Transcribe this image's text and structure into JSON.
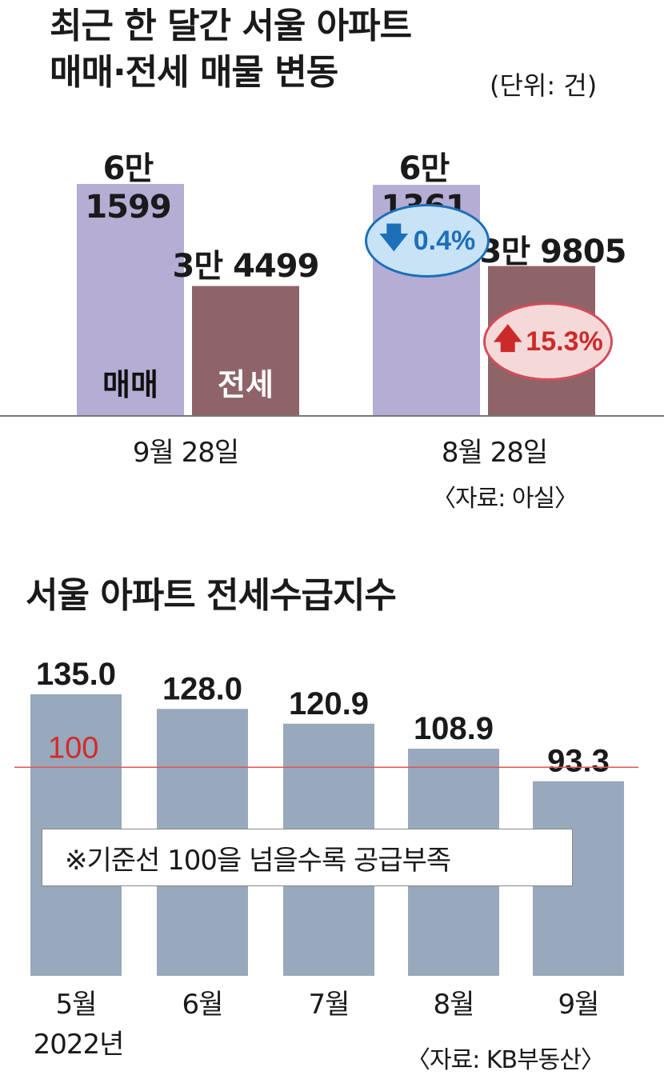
{
  "chart_data": [
    {
      "type": "bar",
      "title": "최근 한 달간 서울 아파트 매매·전세 매물 변동",
      "title_line1": "최근 한 달간 서울 아파트",
      "title_line2": "매매·전세 매물 변동",
      "unit": "(단위: 건)",
      "categories": [
        "9월 28일",
        "8월 28일"
      ],
      "series": [
        {
          "name": "매매",
          "values": [
            61599,
            61361
          ],
          "labels": [
            "6만 1599",
            "6만 1361"
          ],
          "color": "#b5add4"
        },
        {
          "name": "전세",
          "values": [
            34499,
            39805
          ],
          "labels": [
            "3만 4499",
            "3만 9805"
          ],
          "color": "#8f6468"
        }
      ],
      "changes": [
        {
          "series": "매매",
          "direction": "down",
          "text": "0.4%",
          "color": "#1d6fb8",
          "fill": "#c7e3f5"
        },
        {
          "series": "전세",
          "direction": "up",
          "text": "15.3%",
          "color": "#cc2a2a",
          "fill": "#f5d9d9"
        }
      ],
      "source": "〈자료: 아실〉"
    },
    {
      "type": "bar",
      "title": "서울 아파트 전세수급지수",
      "categories": [
        "5월",
        "6월",
        "7월",
        "8월",
        "9월"
      ],
      "year_label": "2022년",
      "values": [
        135.0,
        128.0,
        120.9,
        108.9,
        93.3
      ],
      "value_labels": [
        "135.0",
        "128.0",
        "120.9",
        "108.9",
        "93.3"
      ],
      "bar_color": "#97a9bb",
      "reference_line": {
        "value": 100,
        "label": "100",
        "color": "#e05555"
      },
      "note": "※기준선 100을 넘을수록 공급부족",
      "source": "〈자료: KB부동산〉"
    }
  ]
}
